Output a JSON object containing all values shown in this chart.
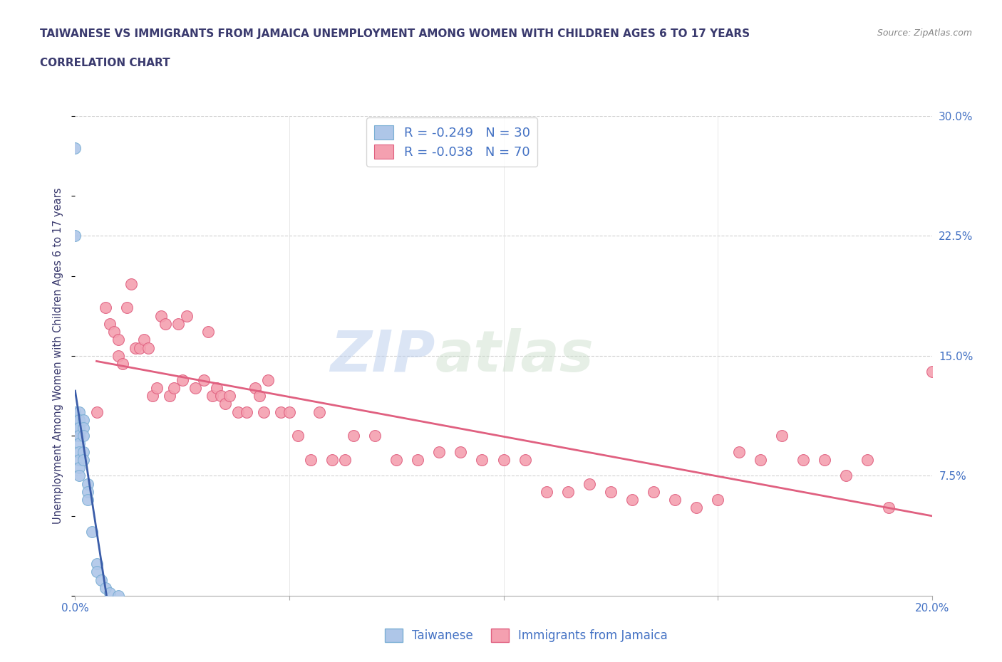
{
  "title_line1": "TAIWANESE VS IMMIGRANTS FROM JAMAICA UNEMPLOYMENT AMONG WOMEN WITH CHILDREN AGES 6 TO 17 YEARS",
  "title_line2": "CORRELATION CHART",
  "source": "Source: ZipAtlas.com",
  "ylabel": "Unemployment Among Women with Children Ages 6 to 17 years",
  "x_min": 0.0,
  "x_max": 0.2,
  "y_min": 0.0,
  "y_max": 0.3,
  "x_ticks": [
    0.0,
    0.05,
    0.1,
    0.15,
    0.2
  ],
  "x_tick_labels": [
    "0.0%",
    "",
    "",
    "",
    "20.0%"
  ],
  "y_ticks_right": [
    0.0,
    0.075,
    0.15,
    0.225,
    0.3
  ],
  "y_tick_labels_right": [
    "",
    "7.5%",
    "15.0%",
    "22.5%",
    "30.0%"
  ],
  "watermark_zip": "ZIP",
  "watermark_atlas": "atlas",
  "title_color": "#3a3a6e",
  "axis_color": "#4472c4",
  "grid_color": "#cccccc",
  "taiwanese_color": "#aec6e8",
  "taiwanese_edge": "#7bafd4",
  "jamaica_color": "#f4a0b0",
  "jamaica_edge": "#e06080",
  "tw_trend_color": "#3a5ca8",
  "jm_trend_color": "#e06080",
  "r_taiwanese": -0.249,
  "n_taiwanese": 30,
  "r_jamaica": -0.038,
  "n_jamaica": 70,
  "taiwanese_x": [
    0.0,
    0.0,
    0.0,
    0.0,
    0.0,
    0.0,
    0.001,
    0.001,
    0.001,
    0.001,
    0.001,
    0.001,
    0.001,
    0.001,
    0.001,
    0.002,
    0.002,
    0.002,
    0.002,
    0.002,
    0.003,
    0.003,
    0.003,
    0.004,
    0.005,
    0.005,
    0.006,
    0.007,
    0.008,
    0.01
  ],
  "taiwanese_y": [
    0.28,
    0.225,
    0.115,
    0.11,
    0.105,
    0.1,
    0.115,
    0.11,
    0.105,
    0.1,
    0.095,
    0.09,
    0.085,
    0.08,
    0.075,
    0.11,
    0.105,
    0.1,
    0.09,
    0.085,
    0.07,
    0.065,
    0.06,
    0.04,
    0.02,
    0.015,
    0.01,
    0.005,
    0.002,
    0.0
  ],
  "jamaica_x": [
    0.005,
    0.007,
    0.008,
    0.009,
    0.01,
    0.01,
    0.011,
    0.012,
    0.013,
    0.014,
    0.015,
    0.016,
    0.017,
    0.018,
    0.019,
    0.02,
    0.021,
    0.022,
    0.023,
    0.024,
    0.025,
    0.026,
    0.028,
    0.03,
    0.031,
    0.032,
    0.033,
    0.034,
    0.035,
    0.036,
    0.038,
    0.04,
    0.042,
    0.043,
    0.044,
    0.045,
    0.048,
    0.05,
    0.052,
    0.055,
    0.057,
    0.06,
    0.063,
    0.065,
    0.07,
    0.075,
    0.08,
    0.085,
    0.09,
    0.095,
    0.1,
    0.105,
    0.11,
    0.115,
    0.12,
    0.125,
    0.13,
    0.135,
    0.14,
    0.145,
    0.15,
    0.155,
    0.16,
    0.165,
    0.17,
    0.175,
    0.18,
    0.185,
    0.19,
    0.2
  ],
  "jamaica_y": [
    0.115,
    0.18,
    0.17,
    0.165,
    0.16,
    0.15,
    0.145,
    0.18,
    0.195,
    0.155,
    0.155,
    0.16,
    0.155,
    0.125,
    0.13,
    0.175,
    0.17,
    0.125,
    0.13,
    0.17,
    0.135,
    0.175,
    0.13,
    0.135,
    0.165,
    0.125,
    0.13,
    0.125,
    0.12,
    0.125,
    0.115,
    0.115,
    0.13,
    0.125,
    0.115,
    0.135,
    0.115,
    0.115,
    0.1,
    0.085,
    0.115,
    0.085,
    0.085,
    0.1,
    0.1,
    0.085,
    0.085,
    0.09,
    0.09,
    0.085,
    0.085,
    0.085,
    0.065,
    0.065,
    0.07,
    0.065,
    0.06,
    0.065,
    0.06,
    0.055,
    0.06,
    0.09,
    0.085,
    0.1,
    0.085,
    0.085,
    0.075,
    0.085,
    0.055,
    0.14
  ]
}
